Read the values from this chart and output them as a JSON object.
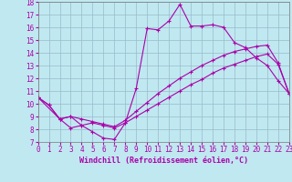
{
  "xlabel": "Windchill (Refroidissement éolien,°C)",
  "bg_color": "#c0e8f0",
  "line_color": "#aa00aa",
  "grid_color": "#99bbcc",
  "xmin": 0,
  "xmax": 23,
  "ymin": 7,
  "ymax": 18,
  "line1_x": [
    0,
    1,
    2,
    3,
    4,
    5,
    6,
    7,
    8,
    9,
    10,
    11,
    12,
    13,
    14,
    15,
    16,
    17,
    18,
    19,
    20,
    21,
    22,
    23
  ],
  "line1_y": [
    10.5,
    9.9,
    8.8,
    8.1,
    8.3,
    7.8,
    7.3,
    7.2,
    8.5,
    11.2,
    15.9,
    15.8,
    16.5,
    17.8,
    16.1,
    16.1,
    16.2,
    16.0,
    14.8,
    14.4,
    13.6,
    13.0,
    11.8,
    10.8
  ],
  "line2_x": [
    0,
    2,
    3,
    4,
    5,
    6,
    7,
    8,
    9,
    10,
    11,
    12,
    13,
    14,
    15,
    16,
    17,
    18,
    19,
    20,
    21,
    22,
    23
  ],
  "line2_y": [
    10.5,
    8.8,
    9.0,
    8.3,
    8.5,
    8.3,
    8.1,
    8.5,
    9.0,
    9.5,
    10.0,
    10.5,
    11.0,
    11.5,
    11.9,
    12.4,
    12.8,
    13.1,
    13.4,
    13.7,
    13.9,
    13.1,
    10.8
  ],
  "line3_x": [
    0,
    1,
    2,
    3,
    4,
    5,
    6,
    7,
    8,
    9,
    10,
    11,
    12,
    13,
    14,
    15,
    16,
    17,
    18,
    19,
    20,
    21,
    22,
    23
  ],
  "line3_y": [
    10.5,
    9.9,
    8.8,
    9.0,
    8.8,
    8.6,
    8.4,
    8.2,
    8.7,
    9.4,
    10.1,
    10.8,
    11.4,
    12.0,
    12.5,
    13.0,
    13.4,
    13.8,
    14.1,
    14.3,
    14.5,
    14.6,
    13.2,
    10.8
  ],
  "xlabel_fontsize": 6,
  "tick_fontsize": 5.5,
  "marker_size": 3,
  "line_width": 0.8
}
